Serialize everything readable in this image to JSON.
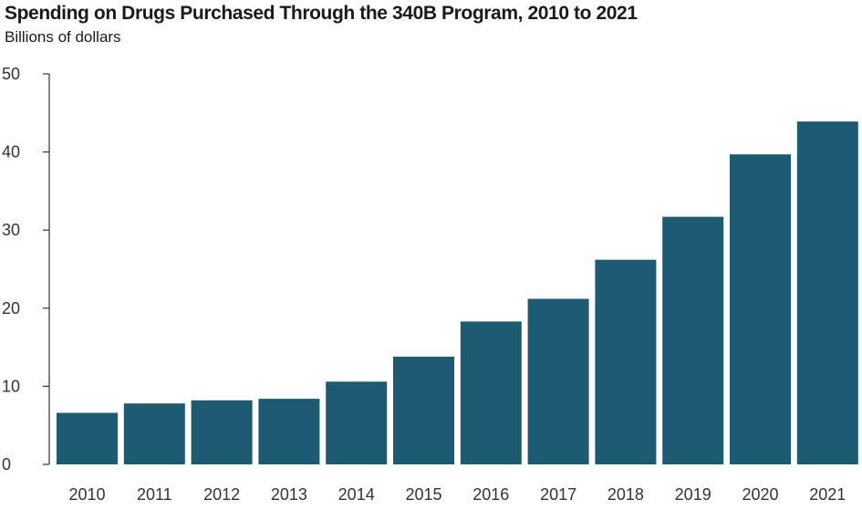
{
  "colors": {
    "bar": "#1c5b71",
    "axis": "#333333"
  },
  "chart_data": {
    "type": "bar",
    "title": "Spending on Drugs Purchased Through the 340B Program, 2010 to 2021",
    "ylabel": "Billions of dollars",
    "xlabel": "",
    "categories": [
      "2010",
      "2011",
      "2012",
      "2013",
      "2014",
      "2015",
      "2016",
      "2017",
      "2018",
      "2019",
      "2020",
      "2021"
    ],
    "values": [
      6.6,
      7.8,
      8.2,
      8.4,
      10.6,
      13.8,
      18.3,
      21.2,
      26.2,
      31.7,
      39.7,
      43.9
    ],
    "ylim": [
      0,
      50
    ],
    "yticks": [
      "0",
      "10",
      "20",
      "30",
      "40",
      "50"
    ],
    "grid": false,
    "legend": "none"
  }
}
